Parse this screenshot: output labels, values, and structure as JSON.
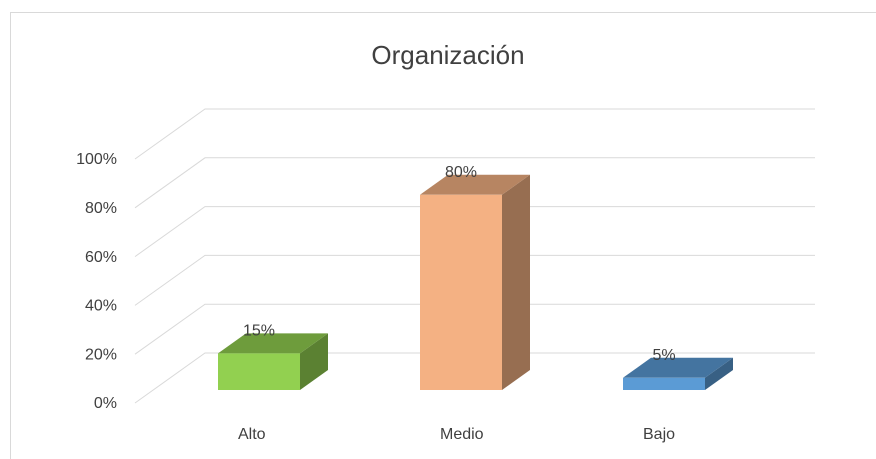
{
  "chart_data": {
    "type": "bar3d",
    "title": "Organización",
    "categories": [
      "Alto",
      "Medio",
      "Bajo"
    ],
    "values": [
      15,
      80,
      5
    ],
    "value_labels": [
      "15%",
      "80%",
      "5%"
    ],
    "colors": [
      "#92d050",
      "#f4b183",
      "#5b9bd5"
    ],
    "ylim": [
      0,
      100
    ],
    "yticks": [
      {
        "value": 0,
        "label": "0%"
      },
      {
        "value": 20,
        "label": "20%"
      },
      {
        "value": 40,
        "label": "40%"
      },
      {
        "value": 60,
        "label": "60%"
      },
      {
        "value": 80,
        "label": "80%"
      },
      {
        "value": 100,
        "label": "100%"
      }
    ],
    "grid": true
  }
}
